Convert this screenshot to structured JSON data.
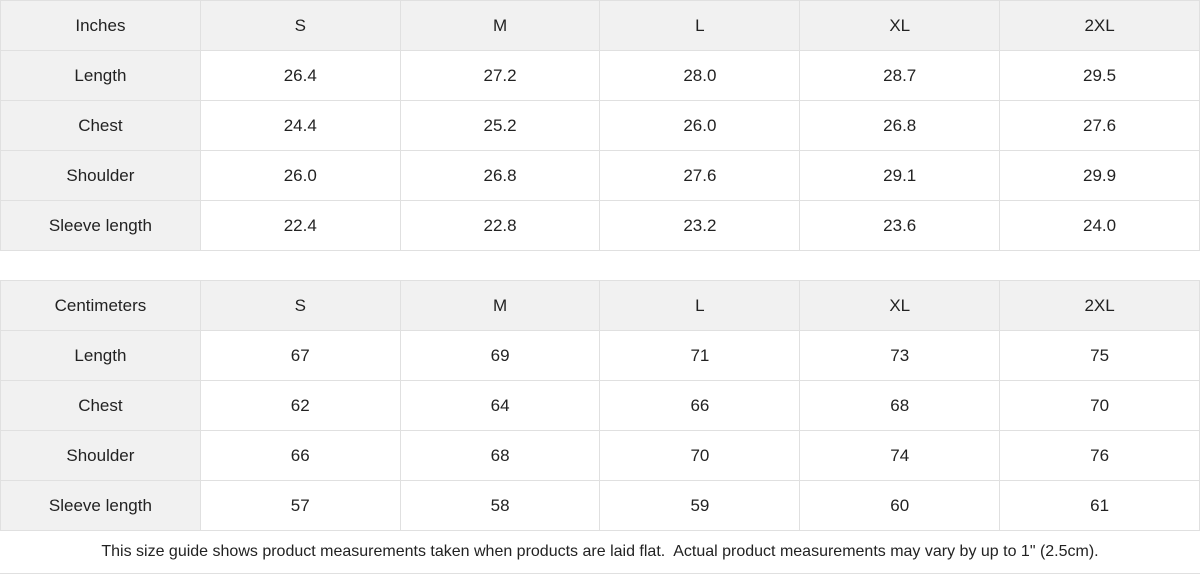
{
  "colors": {
    "header_bg": "#f1f1f1",
    "cell_bg": "#ffffff",
    "border": "#e0e0e0",
    "text": "#222222"
  },
  "tables": [
    {
      "unit_label": "Inches",
      "size_headers": [
        "S",
        "M",
        "L",
        "XL",
        "2XL"
      ],
      "rows": [
        {
          "label": "Length",
          "values": [
            "26.4",
            "27.2",
            "28.0",
            "28.7",
            "29.5"
          ]
        },
        {
          "label": "Chest",
          "values": [
            "24.4",
            "25.2",
            "26.0",
            "26.8",
            "27.6"
          ]
        },
        {
          "label": "Shoulder",
          "values": [
            "26.0",
            "26.8",
            "27.6",
            "29.1",
            "29.9"
          ]
        },
        {
          "label": "Sleeve length",
          "values": [
            "22.4",
            "22.8",
            "23.2",
            "23.6",
            "24.0"
          ]
        }
      ]
    },
    {
      "unit_label": "Centimeters",
      "size_headers": [
        "S",
        "M",
        "L",
        "XL",
        "2XL"
      ],
      "rows": [
        {
          "label": "Length",
          "values": [
            "67",
            "69",
            "71",
            "73",
            "75"
          ]
        },
        {
          "label": "Chest",
          "values": [
            "62",
            "64",
            "66",
            "68",
            "70"
          ]
        },
        {
          "label": "Shoulder",
          "values": [
            "66",
            "68",
            "70",
            "74",
            "76"
          ]
        },
        {
          "label": "Sleeve length",
          "values": [
            "57",
            "58",
            "59",
            "60",
            "61"
          ]
        }
      ]
    }
  ],
  "footer": {
    "note": "This size guide shows product measurements taken when products are laid flat.  Actual product measurements may vary by up to 1\" (2.5cm)."
  },
  "chart_data": [
    {
      "type": "table",
      "title": "Inches",
      "columns": [
        "Inches",
        "S",
        "M",
        "L",
        "XL",
        "2XL"
      ],
      "rows": [
        [
          "Length",
          26.4,
          27.2,
          28.0,
          28.7,
          29.5
        ],
        [
          "Chest",
          24.4,
          25.2,
          26.0,
          26.8,
          27.6
        ],
        [
          "Shoulder",
          26.0,
          26.8,
          27.6,
          29.1,
          29.9
        ],
        [
          "Sleeve length",
          22.4,
          22.8,
          23.2,
          23.6,
          24.0
        ]
      ]
    },
    {
      "type": "table",
      "title": "Centimeters",
      "columns": [
        "Centimeters",
        "S",
        "M",
        "L",
        "XL",
        "2XL"
      ],
      "rows": [
        [
          "Length",
          67,
          69,
          71,
          73,
          75
        ],
        [
          "Chest",
          62,
          64,
          66,
          68,
          70
        ],
        [
          "Shoulder",
          66,
          68,
          70,
          74,
          76
        ],
        [
          "Sleeve length",
          57,
          58,
          59,
          60,
          61
        ]
      ]
    }
  ]
}
